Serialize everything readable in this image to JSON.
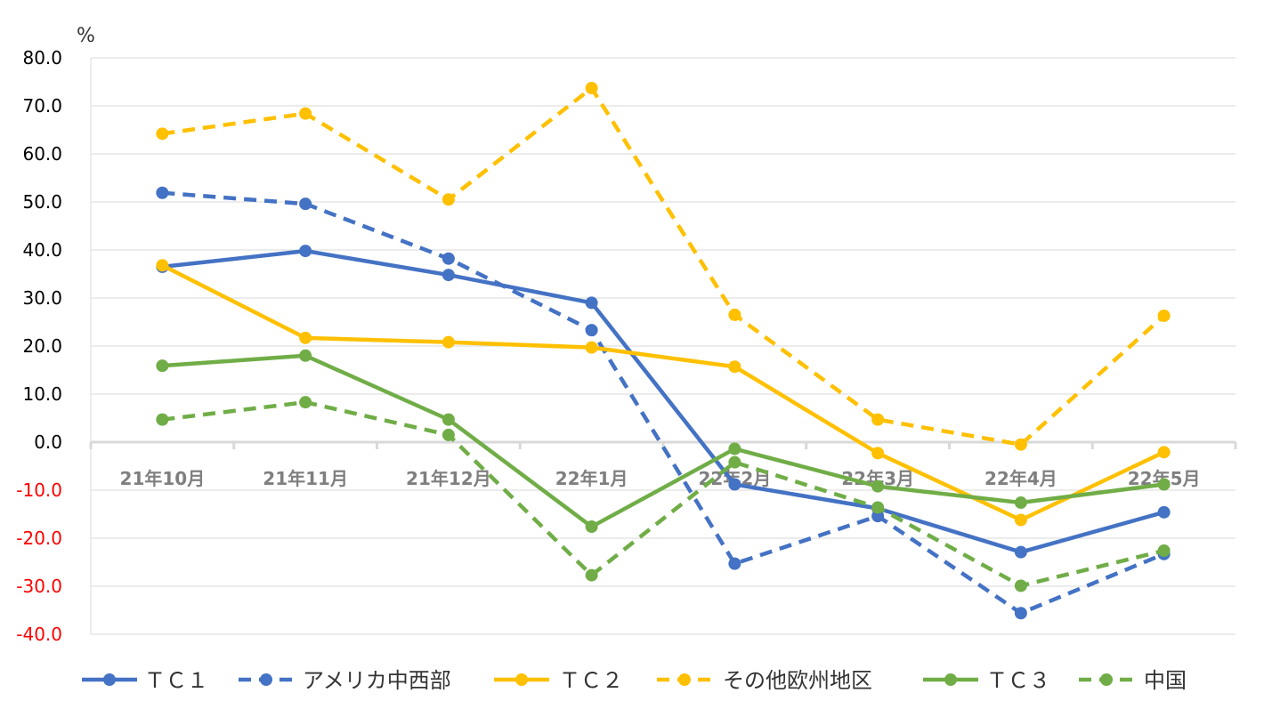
{
  "chart_data": {
    "type": "line",
    "unit_label": "%",
    "categories": [
      "21年10月",
      "21年11月",
      "21年12月",
      "22年1月",
      "22年2月",
      "22年3月",
      "22年4月",
      "22年5月"
    ],
    "ylim": [
      -40,
      80
    ],
    "yticks": [
      "80.0",
      "70.0",
      "60.0",
      "50.0",
      "40.0",
      "30.0",
      "20.0",
      "10.0",
      "0.0",
      "-10.0",
      "-20.0",
      "-30.0",
      "-40.0"
    ],
    "ytick_values": [
      80,
      70,
      60,
      50,
      40,
      30,
      20,
      10,
      0,
      -10,
      -20,
      -30,
      -40
    ],
    "negative_tick_color": "#ff0000",
    "positive_tick_color": "#000000",
    "grid": true,
    "legend_position": "bottom",
    "series": [
      {
        "name": "ＴＣ１",
        "color": "#4472c4",
        "dashed": false,
        "values": [
          36.5,
          39.8,
          34.8,
          29.0,
          -8.8,
          -13.8,
          -22.9,
          -14.6
        ]
      },
      {
        "name": "アメリカ中西部",
        "color": "#4472c4",
        "dashed": true,
        "values": [
          51.9,
          49.6,
          38.2,
          23.3,
          -25.3,
          -15.4,
          -35.6,
          -23.3
        ]
      },
      {
        "name": "ＴＣ２",
        "color": "#ffc000",
        "dashed": false,
        "values": [
          36.8,
          21.7,
          20.8,
          19.7,
          15.7,
          -2.3,
          -16.2,
          -2.1
        ]
      },
      {
        "name": "その他欧州地区",
        "color": "#ffc000",
        "dashed": true,
        "values": [
          64.2,
          68.4,
          50.5,
          73.7,
          26.5,
          4.7,
          -0.5,
          26.3
        ]
      },
      {
        "name": "ＴＣ３",
        "color": "#70ad47",
        "dashed": false,
        "values": [
          15.9,
          18.0,
          4.7,
          -17.6,
          -1.4,
          -9.2,
          -12.6,
          -8.8
        ]
      },
      {
        "name": "中国",
        "color": "#70ad47",
        "dashed": true,
        "values": [
          4.7,
          8.3,
          1.5,
          -27.7,
          -4.2,
          -13.6,
          -29.9,
          -22.6
        ]
      }
    ]
  }
}
